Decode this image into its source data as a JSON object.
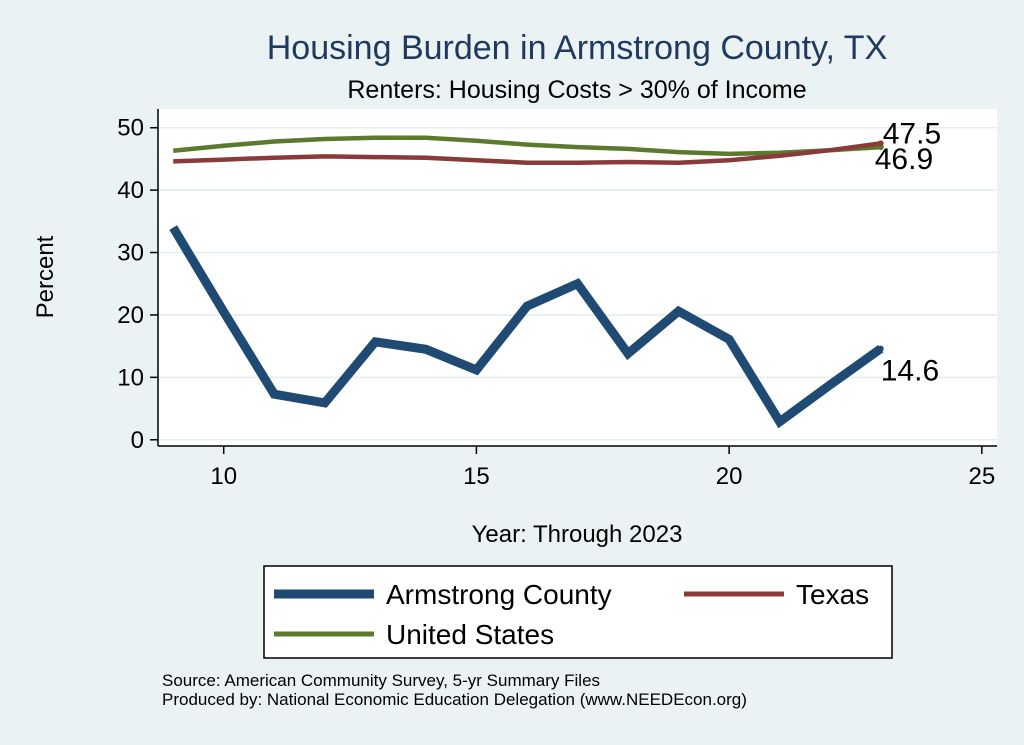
{
  "colors": {
    "background": "#eaf2f3",
    "plot_background": "#ffffff",
    "grid": "#e3ecee",
    "title": "#1f3a5f"
  },
  "chart_data": {
    "type": "line",
    "title": "Housing Burden in Armstrong County, TX",
    "subtitle": "Renters: Housing Costs > 30% of Income",
    "xlabel": "Year: Through 2023",
    "ylabel": "Percent",
    "xlim": [
      8.7,
      25.3
    ],
    "ylim": [
      -1,
      53
    ],
    "xticks": [
      10,
      15,
      20,
      25
    ],
    "yticks": [
      0,
      10,
      20,
      30,
      40,
      50
    ],
    "grid": true,
    "legend_position": "bottom",
    "x": [
      9,
      10,
      11,
      12,
      13,
      14,
      15,
      16,
      17,
      18,
      19,
      20,
      21,
      22,
      23
    ],
    "series": [
      {
        "name": "Armstrong County",
        "color": "#1f4a73",
        "values": [
          34,
          20.5,
          7.3,
          5.9,
          15.7,
          14.5,
          11.2,
          21.4,
          25.0,
          13.8,
          20.6,
          16.1,
          2.9,
          8.8,
          14.6
        ],
        "end_label": "14.6"
      },
      {
        "name": "Texas",
        "color": "#8b3a3a",
        "values": [
          44.6,
          44.9,
          45.2,
          45.4,
          45.3,
          45.2,
          44.8,
          44.4,
          44.4,
          44.5,
          44.4,
          44.8,
          45.5,
          46.4,
          47.5
        ],
        "end_label": "47.5"
      },
      {
        "name": "United States",
        "color": "#5b7a2e",
        "values": [
          46.3,
          47.1,
          47.8,
          48.2,
          48.4,
          48.4,
          47.9,
          47.3,
          46.9,
          46.6,
          46.1,
          45.8,
          46.0,
          46.4,
          46.9
        ],
        "end_label": "46.9"
      }
    ],
    "notes": [
      "Source: American Community Survey, 5-yr Summary Files",
      "Produced by: National Economic Education Delegation (www.NEEDEcon.org)"
    ]
  }
}
